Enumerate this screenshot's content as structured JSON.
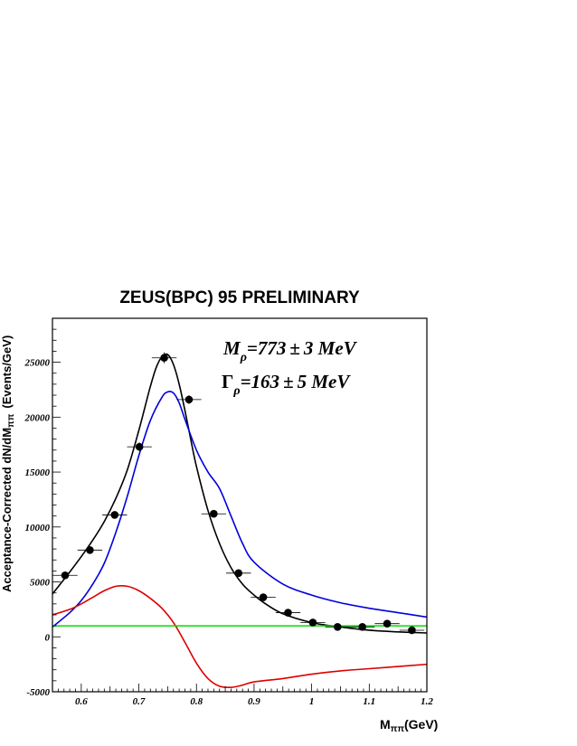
{
  "chart_data": {
    "type": "line",
    "title": "ZEUS(BPC) 95 PRELIMINARY",
    "xlabel": "M",
    "xlabel_sub": "ππ",
    "xlabel_unit": "(GeV)",
    "ylabel": "Acceptance-Corrected dN/dM",
    "ylabel_sub": "ππ",
    "ylabel_unit": "(Events/GeV)",
    "xlim": [
      0.55,
      1.2
    ],
    "ylim": [
      -5000,
      29000
    ],
    "xticks": [
      "0.6",
      "0.7",
      "0.8",
      "0.9",
      "1",
      "1.1",
      "1.2"
    ],
    "yticks": [
      "-5000",
      "0",
      "5000",
      "10000",
      "15000",
      "20000",
      "25000"
    ],
    "annotations": {
      "mass": {
        "symbol": "M",
        "sub": "ρ",
        "value": "=773",
        "pm": "±",
        "err": "3 MeV"
      },
      "width": {
        "symbol": "Γ",
        "sub": "ρ",
        "value": "=163",
        "pm": "±",
        "err": "5 MeV"
      }
    },
    "points": {
      "x": [
        0.572,
        0.615,
        0.658,
        0.701,
        0.744,
        0.787,
        0.83,
        0.873,
        0.916,
        0.959,
        1.002,
        1.045,
        1.088,
        1.131,
        1.174
      ],
      "y": [
        5600,
        7900,
        11100,
        17300,
        25400,
        21600,
        11200,
        5800,
        3600,
        2200,
        1300,
        900,
        900,
        1200,
        600
      ],
      "yerr": [
        200,
        300,
        300,
        400,
        500,
        400,
        300,
        250,
        200,
        200,
        150,
        150,
        150,
        150,
        150
      ]
    },
    "series": [
      {
        "color": "#000000",
        "x": [
          0.55,
          0.58,
          0.6,
          0.62,
          0.64,
          0.66,
          0.68,
          0.7,
          0.71,
          0.72,
          0.73,
          0.74,
          0.75,
          0.76,
          0.77,
          0.78,
          0.79,
          0.8,
          0.82,
          0.84,
          0.86,
          0.88,
          0.9,
          0.92,
          0.95,
          1.0,
          1.05,
          1.1,
          1.15,
          1.2
        ],
        "y": [
          3900,
          5900,
          7300,
          8800,
          10500,
          12600,
          15200,
          18800,
          20800,
          22800,
          24500,
          25500,
          25700,
          24800,
          23000,
          20600,
          18000,
          15500,
          11500,
          8500,
          6300,
          4800,
          3800,
          3000,
          2100,
          1300,
          900,
          600,
          450,
          350
        ]
      },
      {
        "color": "#0000dd",
        "x": [
          0.55,
          0.58,
          0.6,
          0.62,
          0.64,
          0.66,
          0.68,
          0.7,
          0.72,
          0.74,
          0.75,
          0.76,
          0.77,
          0.78,
          0.8,
          0.82,
          0.84,
          0.86,
          0.88,
          0.9,
          0.95,
          1.0,
          1.05,
          1.1,
          1.15,
          1.2
        ],
        "y": [
          900,
          2200,
          3300,
          4800,
          6700,
          9500,
          12800,
          16500,
          19700,
          21800,
          22300,
          22200,
          21300,
          19800,
          17000,
          15000,
          13500,
          11000,
          8500,
          6800,
          4800,
          3800,
          3100,
          2600,
          2200,
          1800
        ]
      },
      {
        "color": "#dd0000",
        "x": [
          0.55,
          0.58,
          0.6,
          0.62,
          0.64,
          0.66,
          0.68,
          0.7,
          0.72,
          0.74,
          0.76,
          0.78,
          0.8,
          0.82,
          0.84,
          0.86,
          0.88,
          0.9,
          0.95,
          1.0,
          1.05,
          1.1,
          1.15,
          1.2
        ],
        "y": [
          2000,
          2500,
          3000,
          3600,
          4200,
          4600,
          4600,
          4200,
          3500,
          2600,
          1300,
          -500,
          -2400,
          -3800,
          -4500,
          -4600,
          -4400,
          -4100,
          -3800,
          -3400,
          -3100,
          -2900,
          -2700,
          -2500
        ]
      },
      {
        "color": "#00dd00",
        "x": [
          0.55,
          1.2
        ],
        "y": [
          1000,
          1000
        ]
      }
    ],
    "grid": false,
    "legend": "none"
  }
}
